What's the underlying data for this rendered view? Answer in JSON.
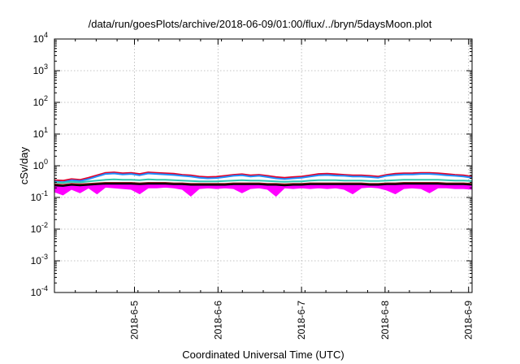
{
  "chart_data": {
    "type": "line",
    "title": "/data/run/goesPlots/archive/2018-06-09/01:00/flux/../bryn/5daysMoon.plot",
    "xlabel": "Coordinated Universal Time (UTC)",
    "ylabel": "cSv/day",
    "yscale": "log",
    "ylim": [
      "1e-4",
      "1e4"
    ],
    "yticks": [
      {
        "base": "10",
        "exp": "-4",
        "value": 0.0001
      },
      {
        "base": "10",
        "exp": "-3",
        "value": 0.001
      },
      {
        "base": "10",
        "exp": "-2",
        "value": 0.01
      },
      {
        "base": "10",
        "exp": "-1",
        "value": 0.1
      },
      {
        "base": "10",
        "exp": "0",
        "value": 1
      },
      {
        "base": "10",
        "exp": "1",
        "value": 10
      },
      {
        "base": "10",
        "exp": "2",
        "value": 100
      },
      {
        "base": "10",
        "exp": "3",
        "value": 1000
      },
      {
        "base": "10",
        "exp": "4",
        "value": 10000
      }
    ],
    "xlim": [
      "2018-06-04 01:00",
      "2018-06-09 01:00"
    ],
    "xticks": [
      {
        "label": "2018-6-5",
        "date": "2018-06-05 00:00"
      },
      {
        "label": "2018-6-6",
        "date": "2018-06-06 00:00"
      },
      {
        "label": "2018-6-7",
        "date": "2018-06-07 00:00"
      },
      {
        "label": "2018-6-8",
        "date": "2018-06-08 00:00"
      },
      {
        "label": "2018-6-9",
        "date": "2018-06-09 00:00"
      }
    ],
    "grid": true,
    "legend": "none",
    "series": [
      {
        "color": "#ff00ff",
        "style": "filled-band",
        "values": [
          0.15,
          0.12,
          0.18,
          0.14,
          0.2,
          0.13,
          0.21,
          0.2,
          0.19,
          0.18,
          0.13,
          0.2,
          0.2,
          0.21,
          0.2,
          0.18,
          0.11,
          0.19,
          0.2,
          0.19,
          0.2,
          0.19,
          0.14,
          0.19,
          0.2,
          0.18,
          0.11,
          0.2,
          0.19,
          0.2,
          0.19,
          0.2,
          0.19,
          0.2,
          0.18,
          0.13,
          0.2,
          0.21,
          0.2,
          0.17,
          0.13,
          0.19,
          0.2,
          0.19,
          0.14,
          0.2,
          0.2,
          0.19,
          0.19,
          0.18
        ]
      },
      {
        "color": "#e4002b",
        "style": "line",
        "values": [
          0.35,
          0.34,
          0.38,
          0.36,
          0.42,
          0.5,
          0.6,
          0.62,
          0.58,
          0.6,
          0.55,
          0.62,
          0.6,
          0.58,
          0.56,
          0.52,
          0.5,
          0.46,
          0.44,
          0.45,
          0.48,
          0.52,
          0.54,
          0.5,
          0.52,
          0.48,
          0.44,
          0.42,
          0.44,
          0.46,
          0.5,
          0.55,
          0.56,
          0.54,
          0.52,
          0.5,
          0.5,
          0.48,
          0.46,
          0.52,
          0.56,
          0.58,
          0.58,
          0.6,
          0.6,
          0.58,
          0.55,
          0.52,
          0.5,
          0.46
        ]
      },
      {
        "color": "#1e90ff",
        "style": "line",
        "values": [
          0.32,
          0.3,
          0.35,
          0.33,
          0.38,
          0.46,
          0.55,
          0.57,
          0.53,
          0.55,
          0.5,
          0.57,
          0.55,
          0.53,
          0.51,
          0.48,
          0.46,
          0.42,
          0.4,
          0.41,
          0.44,
          0.48,
          0.5,
          0.46,
          0.48,
          0.44,
          0.4,
          0.38,
          0.4,
          0.42,
          0.46,
          0.5,
          0.51,
          0.49,
          0.48,
          0.46,
          0.46,
          0.44,
          0.42,
          0.48,
          0.51,
          0.53,
          0.53,
          0.55,
          0.55,
          0.53,
          0.5,
          0.48,
          0.46,
          0.42
        ]
      },
      {
        "color": "#2ec8b0",
        "style": "line",
        "values": [
          0.3,
          0.29,
          0.31,
          0.3,
          0.32,
          0.34,
          0.36,
          0.37,
          0.36,
          0.36,
          0.35,
          0.37,
          0.36,
          0.36,
          0.35,
          0.34,
          0.33,
          0.32,
          0.32,
          0.32,
          0.33,
          0.34,
          0.35,
          0.34,
          0.34,
          0.33,
          0.32,
          0.31,
          0.32,
          0.32,
          0.34,
          0.35,
          0.35,
          0.35,
          0.34,
          0.34,
          0.34,
          0.33,
          0.33,
          0.34,
          0.35,
          0.36,
          0.36,
          0.36,
          0.36,
          0.36,
          0.35,
          0.34,
          0.34,
          0.33
        ]
      },
      {
        "color": "#8b1a1a",
        "style": "line",
        "values": [
          0.26,
          0.25,
          0.27,
          0.26,
          0.27,
          0.28,
          0.29,
          0.29,
          0.29,
          0.29,
          0.28,
          0.29,
          0.29,
          0.29,
          0.28,
          0.28,
          0.27,
          0.27,
          0.27,
          0.27,
          0.27,
          0.28,
          0.28,
          0.28,
          0.28,
          0.27,
          0.27,
          0.26,
          0.27,
          0.27,
          0.28,
          0.28,
          0.28,
          0.28,
          0.28,
          0.28,
          0.28,
          0.27,
          0.27,
          0.28,
          0.28,
          0.29,
          0.29,
          0.29,
          0.29,
          0.29,
          0.28,
          0.28,
          0.28,
          0.27
        ]
      },
      {
        "color": "#000000",
        "style": "line",
        "values": [
          0.24,
          0.23,
          0.25,
          0.24,
          0.25,
          0.26,
          0.27,
          0.27,
          0.27,
          0.27,
          0.26,
          0.27,
          0.27,
          0.27,
          0.26,
          0.26,
          0.25,
          0.25,
          0.25,
          0.25,
          0.25,
          0.26,
          0.26,
          0.26,
          0.26,
          0.25,
          0.25,
          0.24,
          0.25,
          0.25,
          0.26,
          0.26,
          0.26,
          0.26,
          0.26,
          0.26,
          0.26,
          0.25,
          0.25,
          0.26,
          0.26,
          0.27,
          0.27,
          0.27,
          0.27,
          0.27,
          0.26,
          0.26,
          0.26,
          0.25
        ]
      }
    ]
  }
}
